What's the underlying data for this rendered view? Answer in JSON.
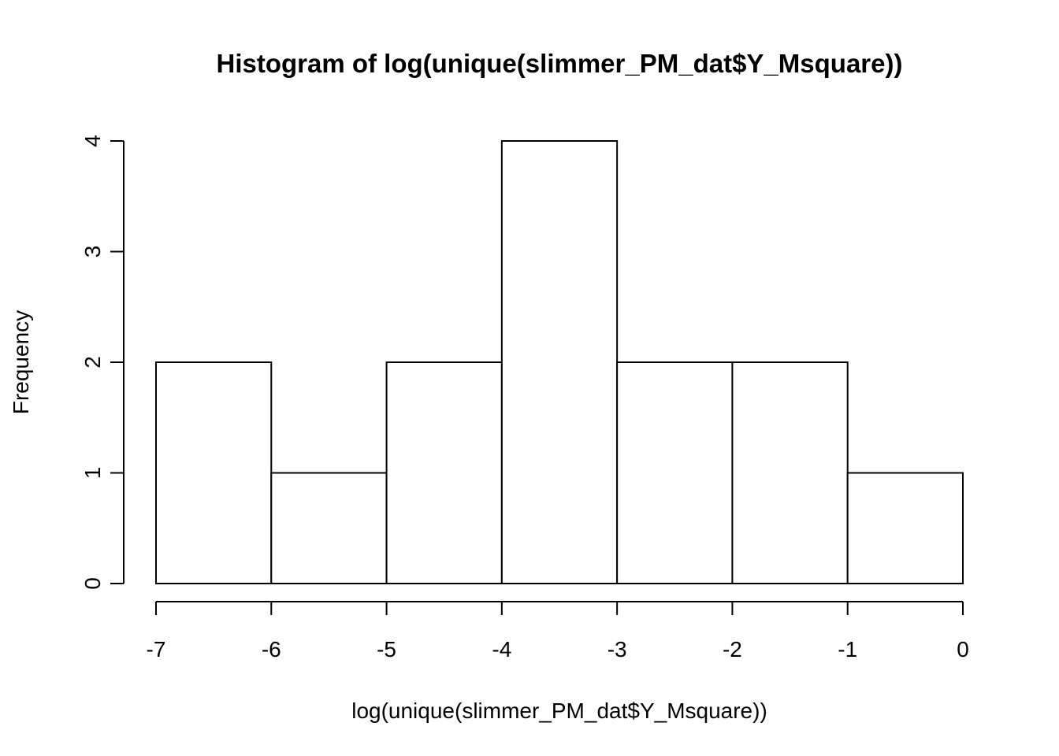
{
  "chart_data": {
    "type": "bar",
    "subtype": "histogram",
    "title": "Histogram of log(unique(slimmer_PM_dat$Y_Msquare))",
    "xlabel": "log(unique(slimmer_PM_dat$Y_Msquare))",
    "ylabel": "Frequency",
    "bins": [
      {
        "x0": -7,
        "x1": -6,
        "count": 2
      },
      {
        "x0": -6,
        "x1": -5,
        "count": 1
      },
      {
        "x0": -5,
        "x1": -4,
        "count": 2
      },
      {
        "x0": -4,
        "x1": -3,
        "count": 4
      },
      {
        "x0": -3,
        "x1": -2,
        "count": 2
      },
      {
        "x0": -2,
        "x1": -1,
        "count": 2
      },
      {
        "x0": -1,
        "x1": 0,
        "count": 1
      }
    ],
    "xlim": [
      -7,
      0
    ],
    "ylim": [
      0,
      4
    ],
    "x_ticks": [
      "-7",
      "-6",
      "-5",
      "-4",
      "-3",
      "-2",
      "-1",
      "0"
    ],
    "y_ticks": [
      "0",
      "1",
      "2",
      "3",
      "4"
    ],
    "grid": false,
    "bar_fill": "#ffffff",
    "bar_stroke": "#000000"
  }
}
